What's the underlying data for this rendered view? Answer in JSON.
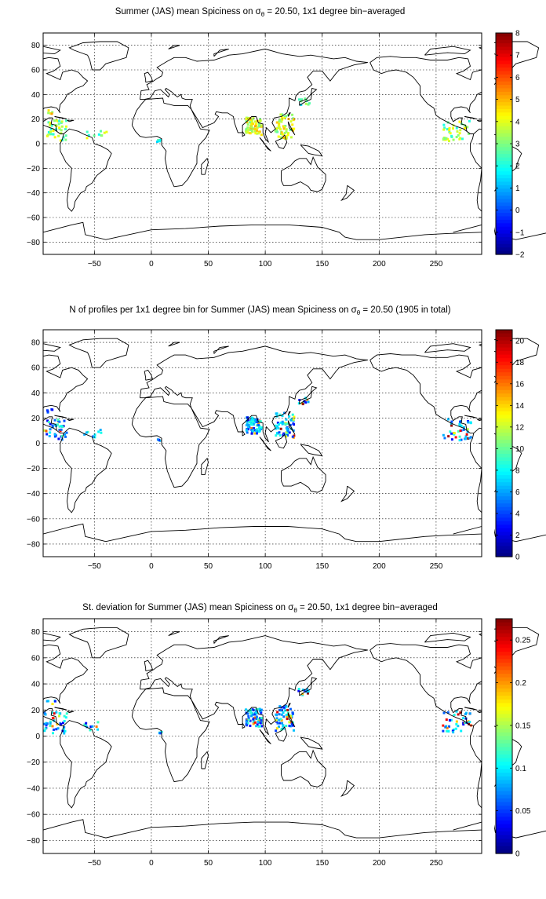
{
  "panels": [
    {
      "title": "Summer (JAS) mean Spiciness on σθ = 20.50, 1x1 degree bin−averaged",
      "title_prefix": "Summer (JAS) mean Spiciness on",
      "title_sigma": "σ",
      "title_sub": "θ",
      "title_suffix": " = 20.50, 1x1 degree bin−averaged",
      "colorbar": {
        "min": -2,
        "max": 8,
        "ticks": [
          "8",
          "7",
          "6",
          "5",
          "4",
          "3",
          "2",
          "1",
          "0",
          "−1",
          "−2"
        ],
        "tick_values": [
          8,
          7,
          6,
          5,
          4,
          3,
          2,
          1,
          0,
          -1,
          -2
        ]
      }
    },
    {
      "title": "N of profiles per 1x1 degree bin for Summer (JAS) mean Spiciness on σθ = 20.50 (1905 in total)",
      "title_prefix": "N of profiles per 1x1 degree bin for Summer (JAS) mean Spiciness on",
      "title_sigma": "σ",
      "title_sub": "θ",
      "title_suffix": " = 20.50 (1905 in total)",
      "colorbar": {
        "min": 0,
        "max": 21,
        "ticks": [
          "20",
          "18",
          "16",
          "14",
          "12",
          "10",
          "8",
          "6",
          "4",
          "2",
          "0"
        ],
        "tick_values": [
          20,
          18,
          16,
          14,
          12,
          10,
          8,
          6,
          4,
          2,
          0
        ]
      }
    },
    {
      "title": "St. deviation for Summer (JAS) mean Spiciness on σθ = 20.50, 1x1 degree bin−averaged",
      "title_prefix": "St. deviation for Summer (JAS) mean Spiciness on",
      "title_sigma": "σ",
      "title_sub": "θ",
      "title_suffix": " = 20.50, 1x1 degree bin−averaged",
      "colorbar": {
        "min": 0,
        "max": 0.275,
        "ticks": [
          "0.25",
          "0.2",
          "0.15",
          "0.1",
          "0.05",
          "0"
        ],
        "tick_values": [
          0.25,
          0.2,
          0.15,
          0.1,
          0.05,
          0
        ]
      }
    }
  ],
  "map": {
    "lon_range": [
      -95,
      290
    ],
    "lat_range": [
      -90,
      90
    ],
    "x_ticks": [
      "−50",
      "0",
      "50",
      "100",
      "150",
      "200",
      "250"
    ],
    "x_tick_values": [
      -50,
      0,
      50,
      100,
      150,
      200,
      250
    ],
    "y_ticks": [
      "80",
      "60",
      "40",
      "20",
      "0",
      "−20",
      "−40",
      "−60",
      "−80"
    ],
    "y_tick_values": [
      80,
      60,
      40,
      20,
      0,
      -20,
      -40,
      -60,
      -80
    ]
  }
}
